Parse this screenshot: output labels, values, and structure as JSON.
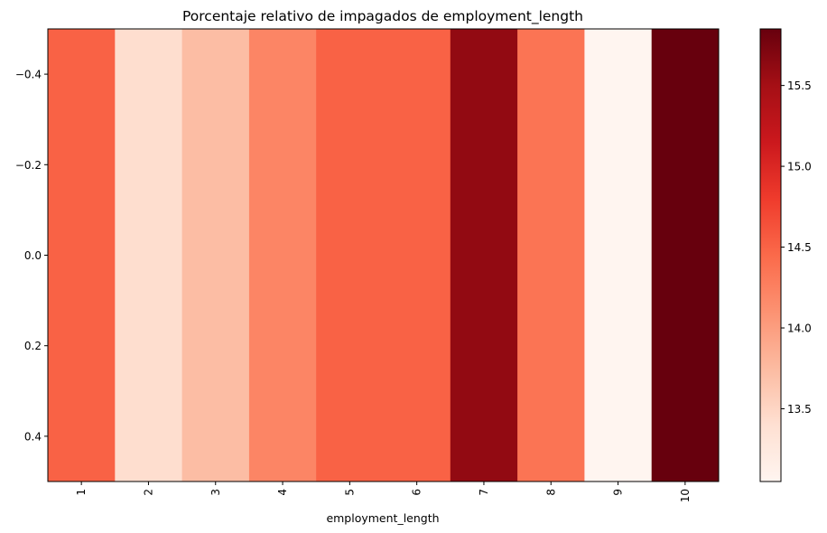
{
  "chart_data": {
    "type": "heatmap",
    "title": "Porcentaje relativo de impagados de employment_length",
    "xlabel": "employment_length",
    "ylabel": "",
    "categories": [
      "1",
      "2",
      "3",
      "4",
      "5",
      "6",
      "7",
      "8",
      "9",
      "10"
    ],
    "values": [
      14.51,
      13.42,
      13.73,
      14.21,
      14.51,
      14.51,
      15.61,
      14.36,
      13.05,
      15.85
    ],
    "ylim": [
      0.5,
      -0.5
    ],
    "yticks": [
      -0.4,
      -0.2,
      0.0,
      0.2,
      0.4
    ],
    "ytick_labels": [
      "−0.4",
      "−0.2",
      "0.0",
      "0.2",
      "0.4"
    ],
    "colorbar": {
      "min": 13.05,
      "max": 15.85,
      "ticks": [
        13.5,
        14.0,
        14.5,
        15.0,
        15.5
      ],
      "tick_labels": [
        "13.5",
        "14.0",
        "14.5",
        "15.0",
        "15.5"
      ]
    },
    "colormap": [
      "#fff5f0",
      "#fee0d2",
      "#fcbba1",
      "#fc9272",
      "#fb6a4a",
      "#ef3b2c",
      "#cb181d",
      "#a50f15",
      "#67000d"
    ]
  }
}
